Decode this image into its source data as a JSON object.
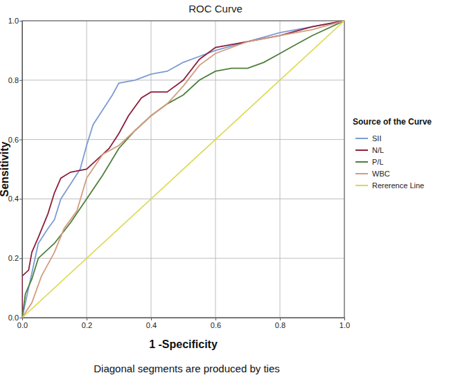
{
  "chart_data": {
    "type": "line",
    "title": "ROC Curve",
    "x_label": "1 -Specificity",
    "y_label": "Sensitivity",
    "legend_title": "Source of the Curve",
    "annotations": [
      "Diagonal segments are produced by ties"
    ],
    "legend": "right",
    "grid": true,
    "xlim": [
      0,
      1
    ],
    "ylim": [
      0,
      1
    ],
    "xticks": [
      {
        "value": 0,
        "label": "0.0"
      },
      0.2,
      0.4,
      0.6,
      0.8,
      {
        "value": 1,
        "label": "1.0"
      }
    ],
    "yticks": [
      {
        "value": 0,
        "label": "0.0"
      },
      0.2,
      0.4,
      0.6,
      0.8,
      {
        "value": 1,
        "label": "1.0"
      }
    ],
    "series": [
      {
        "name": "SII",
        "color": "#7b9bd3",
        "x": [
          0,
          0.02,
          0.05,
          0.08,
          0.1,
          0.12,
          0.15,
          0.18,
          0.2,
          0.22,
          0.25,
          0.28,
          0.3,
          0.35,
          0.4,
          0.45,
          0.5,
          0.55,
          0.6,
          0.7,
          0.8,
          0.9,
          1
        ],
        "values": [
          0,
          0.1,
          0.25,
          0.3,
          0.33,
          0.4,
          0.45,
          0.5,
          0.58,
          0.65,
          0.7,
          0.75,
          0.79,
          0.8,
          0.82,
          0.83,
          0.86,
          0.88,
          0.9,
          0.93,
          0.96,
          0.98,
          1
        ]
      },
      {
        "name": "N/L",
        "color": "#8c1f3c",
        "x": [
          0,
          0,
          0.02,
          0.03,
          0.05,
          0.08,
          0.1,
          0.12,
          0.15,
          0.2,
          0.23,
          0.27,
          0.3,
          0.33,
          0.37,
          0.4,
          0.45,
          0.5,
          0.55,
          0.6,
          0.7,
          0.8,
          0.9,
          1
        ],
        "values": [
          0,
          0.14,
          0.16,
          0.22,
          0.27,
          0.35,
          0.42,
          0.47,
          0.49,
          0.5,
          0.53,
          0.57,
          0.62,
          0.68,
          0.74,
          0.76,
          0.76,
          0.8,
          0.87,
          0.91,
          0.93,
          0.95,
          0.98,
          1
        ]
      },
      {
        "name": "P/L",
        "color": "#4d7f3c",
        "x": [
          0,
          0.01,
          0.03,
          0.05,
          0.1,
          0.15,
          0.2,
          0.25,
          0.3,
          0.35,
          0.4,
          0.45,
          0.5,
          0.55,
          0.6,
          0.65,
          0.7,
          0.75,
          0.8,
          0.85,
          0.9,
          1
        ],
        "values": [
          0,
          0.08,
          0.13,
          0.2,
          0.25,
          0.32,
          0.4,
          0.48,
          0.57,
          0.63,
          0.68,
          0.72,
          0.75,
          0.8,
          0.83,
          0.84,
          0.84,
          0.86,
          0.89,
          0.92,
          0.95,
          1
        ]
      },
      {
        "name": "WBC",
        "color": "#d49c7e",
        "x": [
          0,
          0.03,
          0.06,
          0.1,
          0.13,
          0.17,
          0.2,
          0.25,
          0.3,
          0.35,
          0.4,
          0.45,
          0.5,
          0.55,
          0.6,
          0.7,
          0.8,
          0.9,
          1
        ],
        "values": [
          0,
          0.05,
          0.14,
          0.22,
          0.3,
          0.36,
          0.47,
          0.55,
          0.58,
          0.63,
          0.68,
          0.72,
          0.78,
          0.85,
          0.89,
          0.93,
          0.95,
          0.97,
          1
        ]
      },
      {
        "name": "Rererence Line",
        "color": "#d9d94c",
        "x": [
          0,
          1
        ],
        "values": [
          0,
          1
        ]
      }
    ]
  }
}
